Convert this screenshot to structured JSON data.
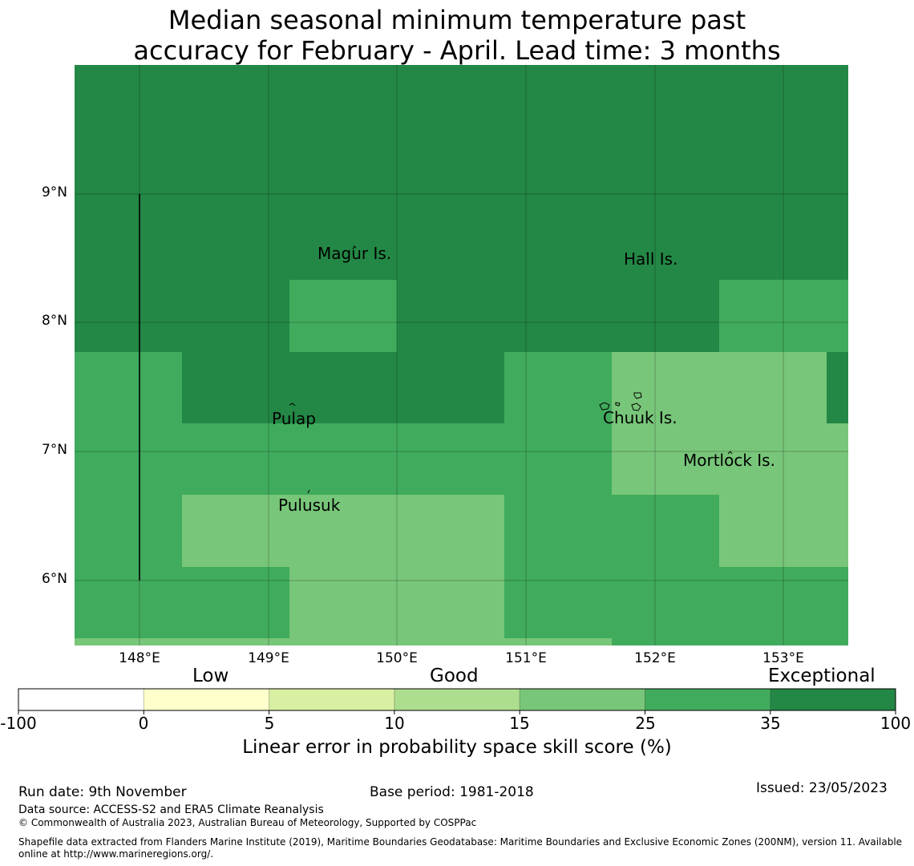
{
  "title": {
    "line1": "Median seasonal minimum temperature past",
    "line2": "accuracy for February - April. Lead time: 3 months"
  },
  "colors": {
    "exceptional": "#238845",
    "very_good": "#40ab5d",
    "good_high": "#78c679",
    "good": "#addd8e",
    "good_low": "#d9f0a3",
    "low": "#ffffcc",
    "none": "#ffffff"
  },
  "map": {
    "lon_range": [
      147.5,
      153.5
    ],
    "lat_range": [
      5.5,
      10.0
    ],
    "lat_ticks": [
      "9°N",
      "8°N",
      "7°N",
      "6°N"
    ],
    "lon_ticks": [
      "148°E",
      "149°E",
      "150°E",
      "151°E",
      "152°E",
      "153°E"
    ],
    "places": [
      {
        "name": "Magur Is."
      },
      {
        "name": "Hall Is."
      },
      {
        "name": "Pulap"
      },
      {
        "name": "Chuuk Is."
      },
      {
        "name": "Mortlock Is."
      },
      {
        "name": "Pulusuk"
      }
    ]
  },
  "colorbar": {
    "categories": [
      "Low",
      "Good",
      "Exceptional"
    ],
    "ticks": [
      "-100",
      "0",
      "5",
      "10",
      "15",
      "25",
      "35",
      "100"
    ],
    "label": "Linear error in probability space skill score (%)"
  },
  "footer": {
    "run_date": "Run date: 9th November",
    "base_period": "Base period: 1981-2018",
    "issued": "Issued: 23/05/2023",
    "data_source": "Data source: ACCESS-S2 and ERA5 Climate Reanalysis",
    "copyright": "© Commonwealth of Australia 2023, Australian Bureau of Meteorology, Supported by COSPPac",
    "shapefile_line1": "Shapefile data extracted from Flanders Marine Institute (2019), Maritime Boundaries Geodatabase: Maritime Boundaries and Exclusive Economic Zones (200NM), version 11. Available",
    "shapefile_line2": "online at http://www.marineregions.org/."
  }
}
